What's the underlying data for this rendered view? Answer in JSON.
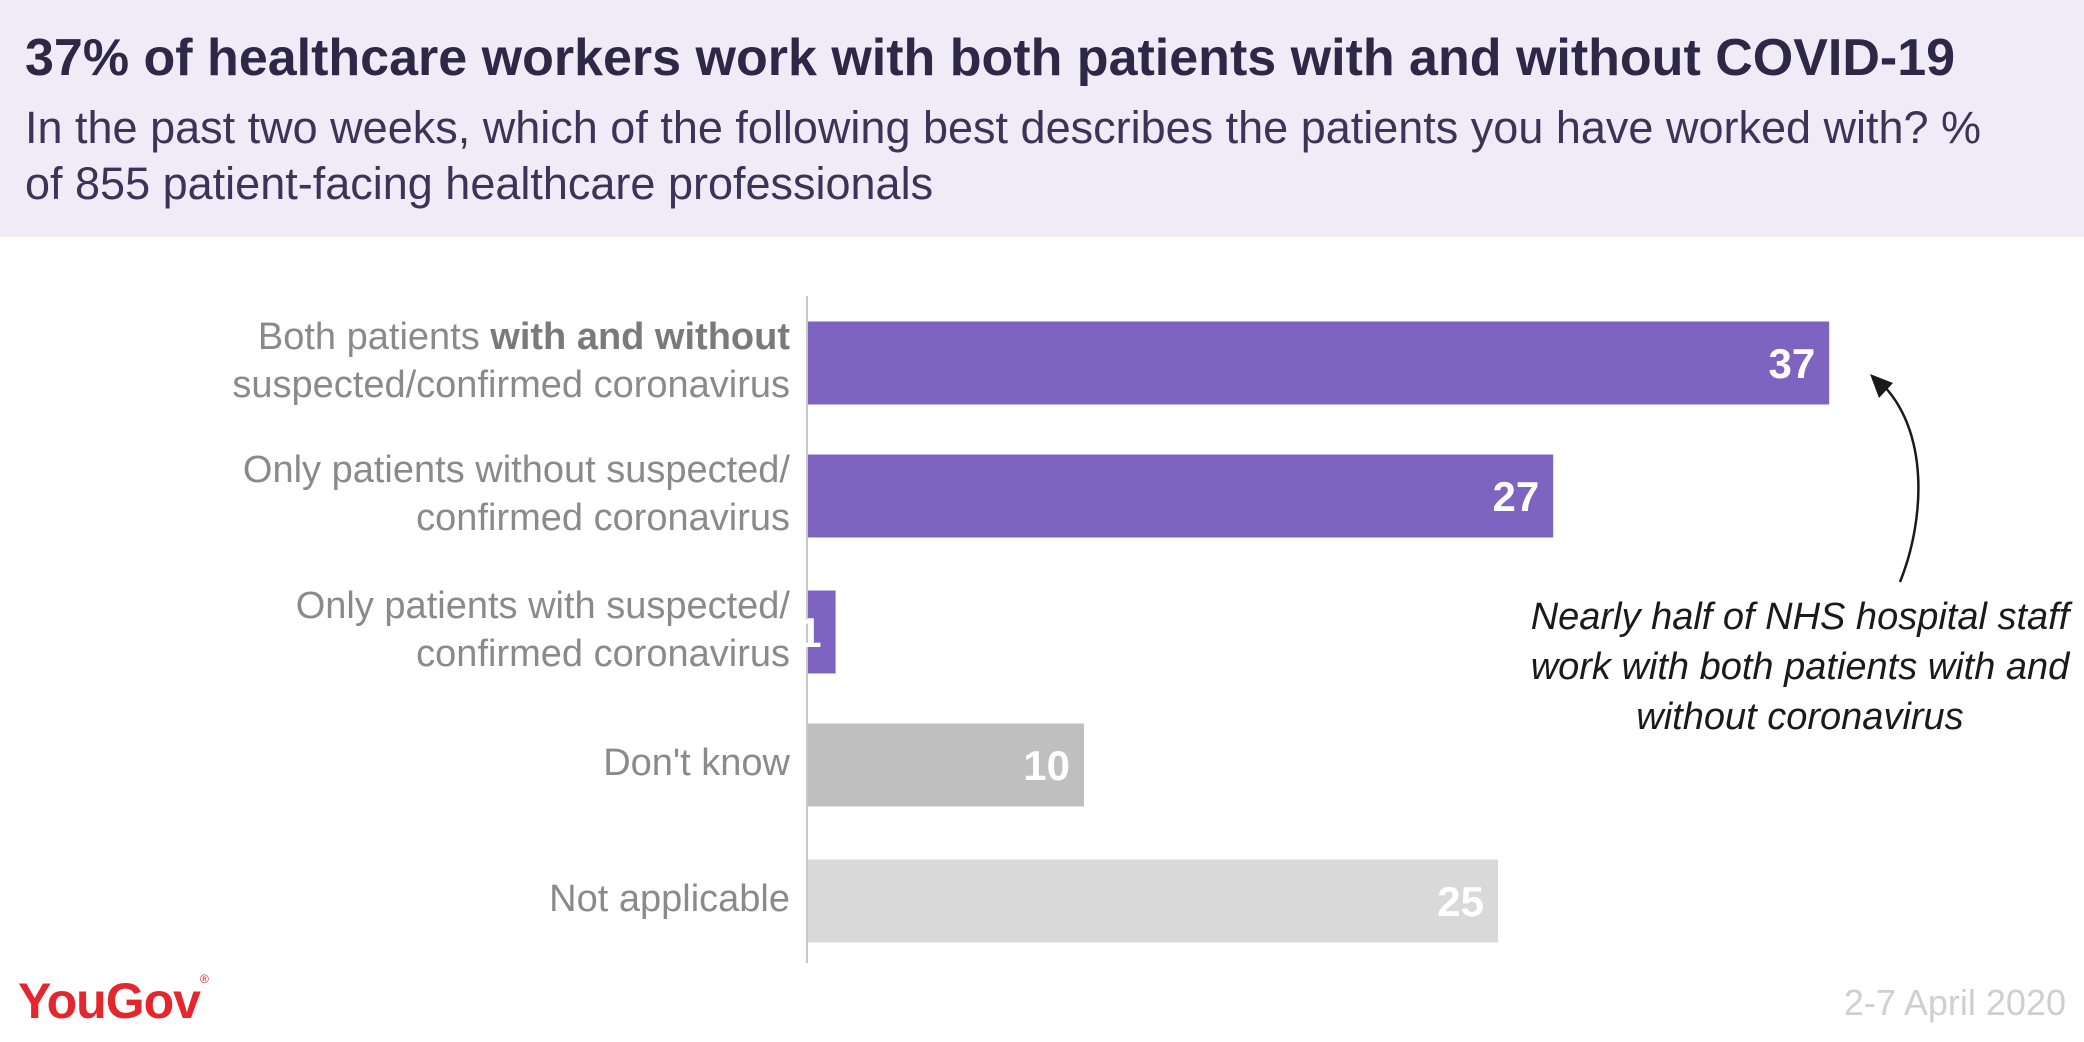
{
  "header": {
    "title": "37% of healthcare workers work with both patients with and without COVID-19",
    "subtitle": "In the past two weeks, which of the following best describes the patients you have worked with? % of 855 patient-facing healthcare professionals"
  },
  "chart_data": {
    "type": "bar",
    "orientation": "horizontal",
    "categories": [
      "Both patients with and without suspected/confirmed coronavirus",
      "Only patients without suspected/ confirmed coronavirus",
      "Only patients with suspected/ confirmed coronavirus",
      "Don't know",
      "Not applicable"
    ],
    "label_parts": [
      {
        "pre": "Both patients ",
        "bold": "with and without",
        "line2": "suspected/confirmed coronavirus"
      },
      {
        "pre": "Only patients without suspected/",
        "bold": "",
        "line2": "confirmed coronavirus"
      },
      {
        "pre": "Only patients with suspected/",
        "bold": "",
        "line2": "confirmed coronavirus"
      },
      {
        "pre": "Don't know",
        "bold": "",
        "line2": ""
      },
      {
        "pre": "Not applicable",
        "bold": "",
        "line2": ""
      }
    ],
    "values": [
      37,
      27,
      1,
      10,
      25
    ],
    "colors": [
      "#7e64c0",
      "#7e64c0",
      "#7e64c0",
      "#bfbfbf",
      "#d9d9d9"
    ],
    "value_label_color": "#ffffff",
    "xlim": [
      0,
      40
    ],
    "grid": false,
    "annotation": "Nearly half of NHS hospital staff work with both patients with and without coronavirus"
  },
  "footer": {
    "logo": "YouGov",
    "date": "2-7 April 2020"
  }
}
